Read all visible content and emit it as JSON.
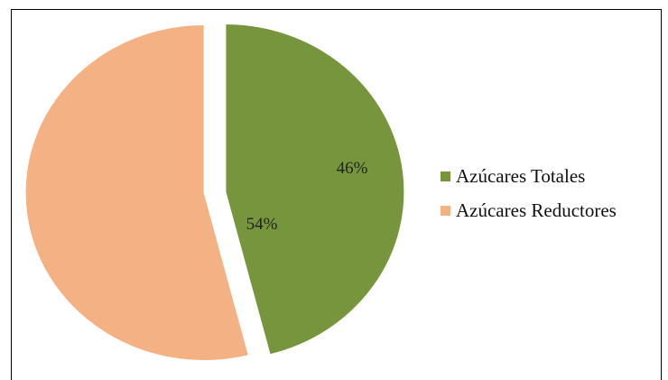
{
  "chart_data": {
    "type": "pie",
    "title": "",
    "slices": [
      {
        "name": "Azúcares Totales",
        "value": 46,
        "label": "46%",
        "color": "#77953c",
        "exploded": true
      },
      {
        "name": "Azúcares Reductores",
        "value": 54,
        "label": "54%",
        "color": "#f4b183",
        "exploded": true
      }
    ],
    "legend_position": "right"
  },
  "legend": {
    "items": [
      {
        "label": "Azúcares Totales",
        "color": "#77953c"
      },
      {
        "label": "Azúcares Reductores",
        "color": "#f4b183"
      }
    ]
  }
}
